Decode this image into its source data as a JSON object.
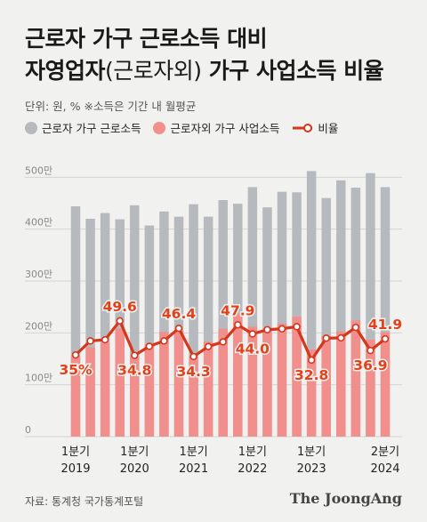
{
  "title": {
    "line1": "근로자 가구 근로소득 대비",
    "line2_a": "자영업자",
    "line2_b": "(근로자외)",
    "line2_c": " 가구 사업소득 비율"
  },
  "note": "단위: 원, %   ※소득은 기간 내 월평균",
  "legend": {
    "gray": "근로자 가구 근로소득",
    "pink": "근로자외 가구 사업소득",
    "line": "비율"
  },
  "source": "자료: 통계청 국가통계포털",
  "brand": "The JoongAng",
  "colors": {
    "gray": "#b6babe",
    "pink": "#f08f8c",
    "line": "#d6361c",
    "accent": "#e2421b"
  },
  "chart_data": {
    "type": "bar",
    "unit": "만 원",
    "ylim": [
      0,
      540
    ],
    "y_ticks": [
      0,
      100,
      200,
      300,
      400,
      500
    ],
    "y_tick_labels": [
      "0",
      "100만",
      "200만",
      "300만",
      "400만",
      "500만"
    ],
    "x_tick_labels": [
      {
        "index": 0,
        "line1": "1분기",
        "line2": "2019"
      },
      {
        "index": 4,
        "line1": "1분기",
        "line2": "2020"
      },
      {
        "index": 8,
        "line1": "1분기",
        "line2": "2021"
      },
      {
        "index": 12,
        "line1": "1분기",
        "line2": "2022"
      },
      {
        "index": 16,
        "line1": "1분기",
        "line2": "2023"
      },
      {
        "index": 21,
        "line1": "2분기",
        "line2": "2024"
      }
    ],
    "series": [
      {
        "name": "근로자 가구 근로소득",
        "chart": "bar",
        "values": [
          444,
          420,
          431,
          419,
          446,
          407,
          434,
          424,
          448,
          424,
          456,
          449,
          481,
          442,
          472,
          471,
          512,
          460,
          494,
          480,
          508,
          481
        ]
      },
      {
        "name": "근로자외 가구 사업소득",
        "chart": "bar",
        "values": [
          156,
          172,
          181,
          208,
          155,
          178,
          202,
          204,
          154,
          183,
          208,
          236,
          212,
          203,
          218,
          231,
          168,
          194,
          203,
          224,
          187,
          201
        ]
      },
      {
        "name": "비율",
        "chart": "line",
        "unit": "%",
        "values": [
          35.0,
          41.0,
          41.5,
          49.6,
          34.8,
          38.7,
          41.0,
          46.4,
          34.3,
          38.6,
          40.6,
          47.9,
          44.0,
          45.8,
          46.2,
          47.1,
          32.8,
          42.2,
          42.3,
          46.8,
          36.9,
          41.9
        ]
      }
    ],
    "data_labels": [
      {
        "index": 0,
        "text": "35%",
        "pos": "below"
      },
      {
        "index": 3,
        "text": "49.6",
        "pos": "above"
      },
      {
        "index": 4,
        "text": "34.8",
        "pos": "below"
      },
      {
        "index": 7,
        "text": "46.4",
        "pos": "above"
      },
      {
        "index": 8,
        "text": "34.3",
        "pos": "below"
      },
      {
        "index": 11,
        "text": "47.9",
        "pos": "above"
      },
      {
        "index": 12,
        "text": "44.0",
        "pos": "below"
      },
      {
        "index": 16,
        "text": "32.8",
        "pos": "below"
      },
      {
        "index": 20,
        "text": "36.9",
        "pos": "below"
      },
      {
        "index": 21,
        "text": "41.9",
        "pos": "above"
      }
    ],
    "grid": true
  }
}
